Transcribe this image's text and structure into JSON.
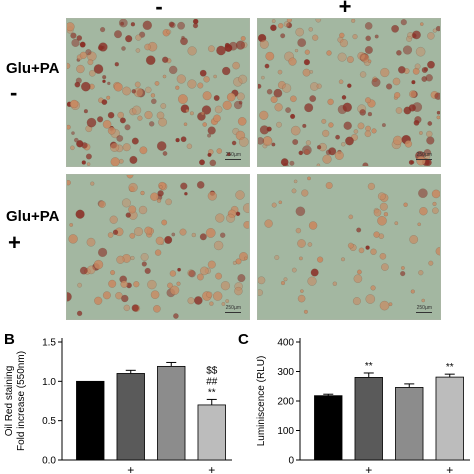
{
  "figure": {
    "column_headers": [
      "-",
      "+"
    ],
    "row_labels": [
      {
        "label": "Glu+PA",
        "sign": "-"
      },
      {
        "label": "Glu+PA",
        "sign": "+"
      }
    ],
    "scale_bar_text": "250µm",
    "micro_colors": {
      "background": "#a3b7a1",
      "stain_dark": "#8a2a22",
      "stain_light": "#c78a63"
    },
    "micrographs": [
      {
        "row": 0,
        "col": 0,
        "staining": "heavy"
      },
      {
        "row": 0,
        "col": 1,
        "staining": "heavy"
      },
      {
        "row": 1,
        "col": 0,
        "staining": "moderate"
      },
      {
        "row": 1,
        "col": 1,
        "staining": "light"
      }
    ]
  },
  "chart_data": [
    {
      "panel": "B",
      "type": "bar",
      "ylabel": "Oil Red staining\nFold increase (550nm)",
      "ylim": [
        0.0,
        1.5
      ],
      "yticks": [
        "0.0",
        "0.5",
        "1.0",
        "1.5"
      ],
      "x_tick_marks": [
        "",
        "+",
        "",
        "+"
      ],
      "values": [
        1.0,
        1.1,
        1.19,
        0.7
      ],
      "errors": [
        0.0,
        0.04,
        0.05,
        0.07
      ],
      "bar_colors": [
        "#000000",
        "#5a5a5a",
        "#8c8c8c",
        "#bcbcbc"
      ],
      "annotations": [
        {
          "bar": 3,
          "lines": [
            "$$",
            "##",
            "**"
          ]
        }
      ]
    },
    {
      "panel": "C",
      "type": "bar",
      "ylabel": "Luminiscence (RLU)",
      "ylim": [
        0,
        400
      ],
      "yticks": [
        "0",
        "100",
        "200",
        "300",
        "400"
      ],
      "x_tick_marks": [
        "",
        "+",
        "",
        "+"
      ],
      "values": [
        218,
        280,
        246,
        281
      ],
      "errors": [
        5,
        15,
        12,
        10
      ],
      "bar_colors": [
        "#000000",
        "#5a5a5a",
        "#8c8c8c",
        "#bcbcbc"
      ],
      "annotations": [
        {
          "bar": 1,
          "lines": [
            "**"
          ]
        },
        {
          "bar": 3,
          "lines": [
            "**"
          ]
        }
      ]
    }
  ]
}
